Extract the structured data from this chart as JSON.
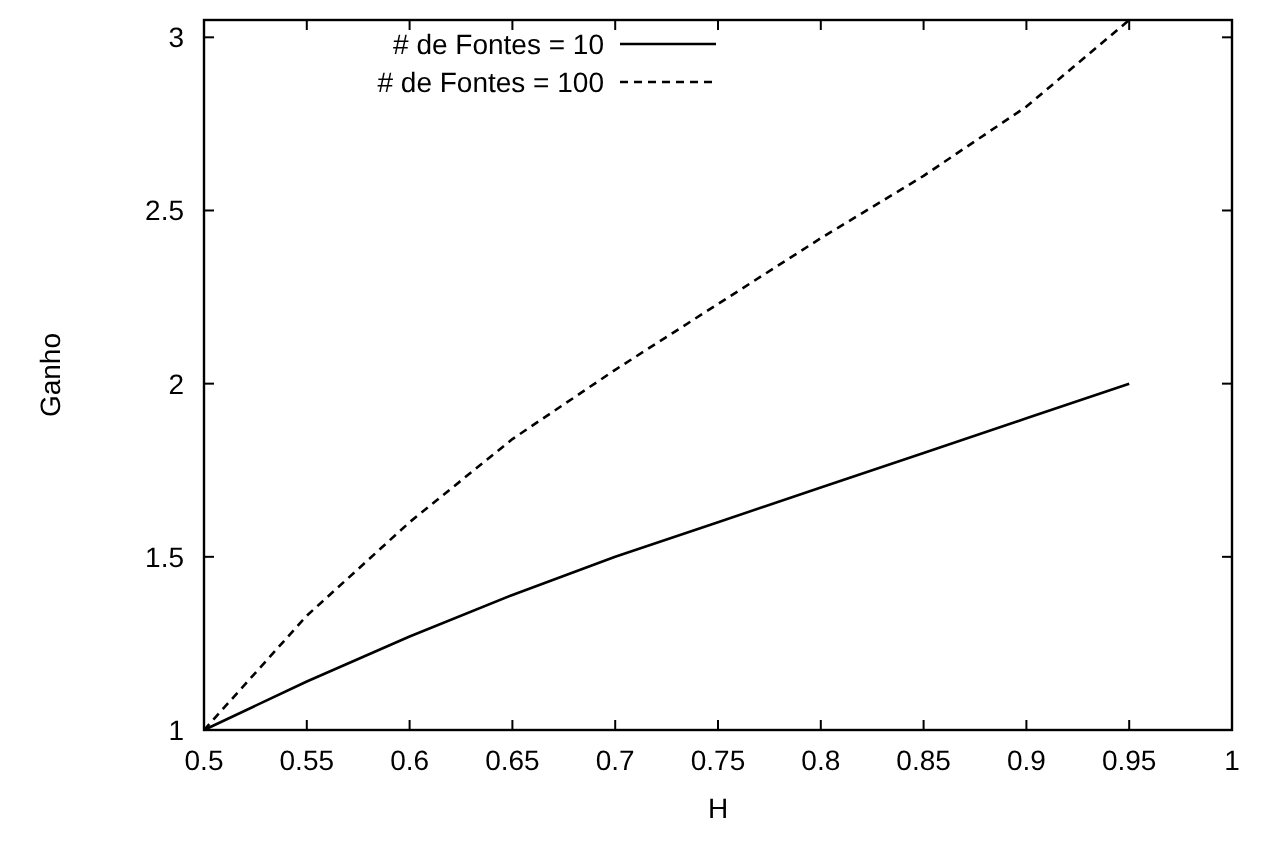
{
  "chart_data": {
    "type": "line",
    "xlabel": "H",
    "ylabel": "Ganho",
    "x": [
      0.5,
      0.55,
      0.6,
      0.65,
      0.7,
      0.75,
      0.8,
      0.85,
      0.9,
      0.95
    ],
    "series": [
      {
        "name": "# de Fontes = 10",
        "color": "#000000",
        "line_style": "solid",
        "values": [
          1,
          1.14,
          1.27,
          1.39,
          1.5,
          1.6,
          1.7,
          1.8,
          1.9,
          2.0
        ]
      },
      {
        "name": "# de Fontes = 100",
        "color": "#000000",
        "line_style": "dashed",
        "values": [
          1,
          1.33,
          1.6,
          1.84,
          2.04,
          2.23,
          2.42,
          2.6,
          2.8,
          3.05
        ]
      }
    ],
    "xlim": [
      0.5,
      1
    ],
    "xticks": [
      0.5,
      0.55,
      0.6,
      0.65,
      0.7,
      0.75,
      0.8,
      0.85,
      0.9,
      0.95,
      1
    ],
    "ylim": [
      1,
      3.05
    ],
    "yticks": [
      1,
      1.5,
      2,
      2.5,
      3
    ],
    "legend": "top left",
    "marker": "none"
  }
}
